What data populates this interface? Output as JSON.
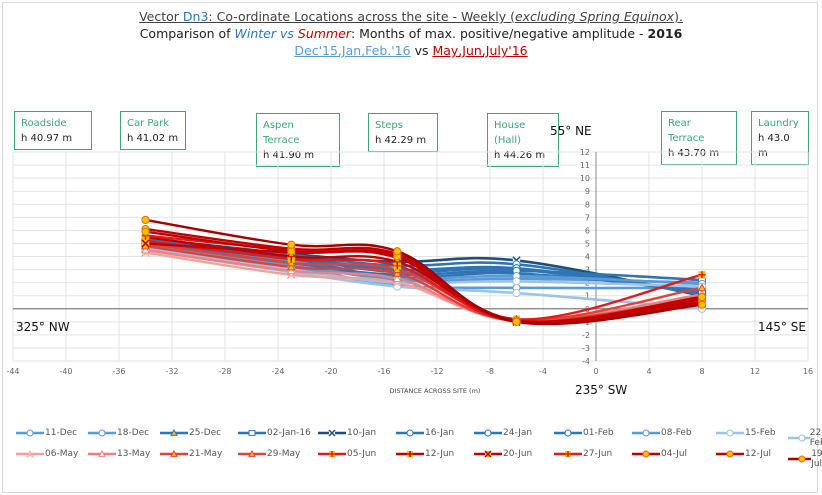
{
  "title": {
    "line1_prefix": "Vector ",
    "line1_code": "Dn3",
    "line1_rest": ": Co-ordinate Locations across the site - Weekly (",
    "line1_italic": "excluding Spring Equinox",
    "line1_end": ").",
    "line2_prefix": "Comparison of ",
    "line2_winter": "Winter",
    "line2_vs": " vs ",
    "line2_summer": "Summer",
    "line2_rest": ": Months of max. positive/negative amplitude - ",
    "line2_year": "2016",
    "line3_winter": "Dec'15,Jan,Feb.'16",
    "line3_vs": " vs ",
    "line3_summer": "May,Jun,July'16"
  },
  "locations": [
    {
      "name": "Roadside",
      "height": "h 40.97 m"
    },
    {
      "name": "Car Park",
      "height": "h 41.02 m"
    },
    {
      "name": "Aspen Terrace",
      "height": "h 41.90 m"
    },
    {
      "name": "Steps",
      "height": "h 42.29 m"
    },
    {
      "name": "House (Hall)",
      "height": "h 44.26 m"
    },
    {
      "name": "Rear Terrace",
      "height": "h 43.70 m"
    },
    {
      "name": "Laundry",
      "height": "h 43.0 m"
    }
  ],
  "directions": {
    "north": "55° NE",
    "west": "325° NW",
    "east": "145° SE",
    "south": "235° SW"
  },
  "colors": {
    "grid": "#e3e3e3",
    "axis": "#888888",
    "zero_line": "#7f7f7f",
    "marker_fill": "#ffc000",
    "location_border": "#3aa67a"
  },
  "chart_data": {
    "type": "line",
    "title": "Vector Dn3: Co-ordinate Locations across the site - Weekly (excluding Spring Equinox)",
    "xlabel": "DISTANCE ACROSS SITE (m)",
    "ylabel": "",
    "xlim": [
      -44,
      16
    ],
    "ylim": [
      -4,
      12
    ],
    "xticks": [
      -44,
      -40,
      -36,
      -32,
      -28,
      -24,
      -20,
      -16,
      -12,
      -8,
      -4,
      0,
      4,
      8,
      12,
      16
    ],
    "yticks": [
      -4,
      -3,
      -2,
      -1,
      0,
      1,
      2,
      3,
      4,
      5,
      6,
      7,
      8,
      9,
      10,
      11,
      12
    ],
    "grid": true,
    "legend_position": "bottom",
    "x": [
      -34,
      -23,
      -15,
      -6,
      8
    ],
    "series": [
      {
        "name": "11-Dec",
        "color": "#5b9bd5",
        "marker": "circle-open",
        "values": [
          4.7,
          3.2,
          1.8,
          1.6,
          1.6
        ]
      },
      {
        "name": "18-Dec",
        "color": "#5b9bd5",
        "marker": "circle-open",
        "values": [
          4.9,
          3.6,
          2.2,
          2.3,
          2.0
        ]
      },
      {
        "name": "25-Dec",
        "color": "#2e75b6",
        "marker": "triangle",
        "values": [
          5.0,
          3.8,
          2.4,
          2.7,
          1.4
        ]
      },
      {
        "name": "02-Jan-16",
        "color": "#2e75b6",
        "marker": "square-open",
        "values": [
          5.1,
          3.9,
          2.8,
          3.0,
          1.2
        ]
      },
      {
        "name": "10-Jan",
        "color": "#1f4e79",
        "marker": "x",
        "values": [
          5.4,
          4.2,
          3.6,
          3.7,
          1.0
        ]
      },
      {
        "name": "16-Jan",
        "color": "#2e75b6",
        "marker": "circle-open",
        "values": [
          5.2,
          4.1,
          3.3,
          3.4,
          1.1
        ]
      },
      {
        "name": "24-Jan",
        "color": "#2e75b6",
        "marker": "circle-open",
        "values": [
          5.3,
          4.0,
          3.0,
          3.1,
          1.3
        ]
      },
      {
        "name": "01-Feb",
        "color": "#2e75b6",
        "marker": "circle-open",
        "values": [
          5.0,
          3.5,
          2.6,
          2.9,
          2.2
        ]
      },
      {
        "name": "08-Feb",
        "color": "#5b9bd5",
        "marker": "circle-open",
        "values": [
          4.8,
          3.3,
          2.3,
          2.5,
          1.9
        ]
      },
      {
        "name": "15-Feb",
        "color": "#9dc3e6",
        "marker": "circle-open",
        "values": [
          4.6,
          3.0,
          2.0,
          2.1,
          1.7
        ]
      },
      {
        "name": "22-Feb",
        "color": "#9dc3e6",
        "marker": "circle-open",
        "values": [
          4.5,
          2.8,
          1.7,
          1.2,
          0.0
        ]
      },
      {
        "name": "06-May",
        "color": "#f4a09a",
        "marker": "star",
        "values": [
          4.3,
          2.6,
          2.0,
          -0.8,
          0.9
        ]
      },
      {
        "name": "13-May",
        "color": "#f08080",
        "marker": "triangle-open",
        "values": [
          4.5,
          2.9,
          2.3,
          -0.9,
          1.1
        ]
      },
      {
        "name": "21-May",
        "color": "#e0413a",
        "marker": "triangle",
        "values": [
          4.8,
          3.2,
          2.7,
          -0.9,
          1.6
        ]
      },
      {
        "name": "29-May",
        "color": "#e0413a",
        "marker": "triangle",
        "values": [
          5.0,
          3.5,
          3.0,
          -0.8,
          0.8
        ]
      },
      {
        "name": "05-Jun",
        "color": "#e31a1c",
        "marker": "plus",
        "values": [
          5.2,
          3.8,
          3.3,
          -1.0,
          0.6
        ]
      },
      {
        "name": "12-Jun",
        "color": "#c00000",
        "marker": "plus",
        "values": [
          5.5,
          4.0,
          3.6,
          -0.9,
          0.5
        ]
      },
      {
        "name": "20-Jun",
        "color": "#c00000",
        "marker": "x",
        "values": [
          5.0,
          4.3,
          3.9,
          -1.0,
          0.4
        ]
      },
      {
        "name": "27-Jun",
        "color": "#e31a1c",
        "marker": "plus",
        "values": [
          5.6,
          4.5,
          4.1,
          -0.8,
          2.6
        ]
      },
      {
        "name": "04-Jul",
        "color": "#c00000",
        "marker": "circle",
        "values": [
          6.1,
          4.6,
          4.2,
          -0.9,
          0.7
        ]
      },
      {
        "name": "12-Jul",
        "color": "#c00000",
        "marker": "circle",
        "values": [
          5.9,
          4.4,
          4.0,
          -0.9,
          0.9
        ]
      },
      {
        "name": "19-Jul",
        "color": "#a50000",
        "marker": "circle",
        "values": [
          6.8,
          4.9,
          4.4,
          -1.0,
          0.3
        ]
      }
    ]
  }
}
